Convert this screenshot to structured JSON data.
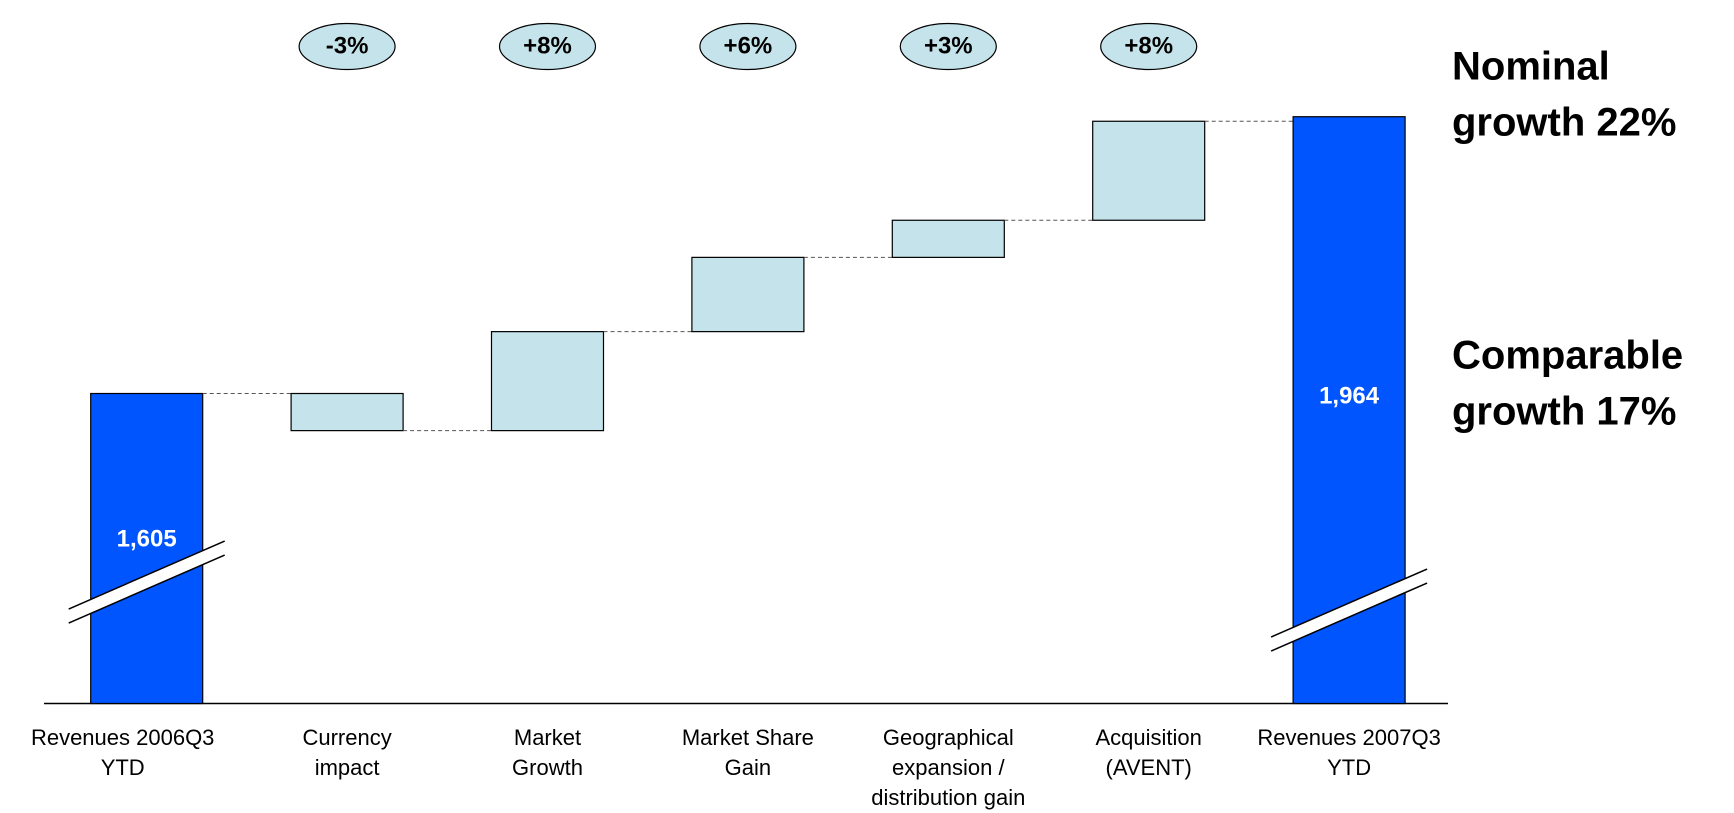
{
  "chart_data": {
    "type": "waterfall",
    "categories": [
      [
        "Revenues 2006Q3",
        "YTD"
      ],
      [
        "Currency",
        "impact"
      ],
      [
        "Market",
        "Growth"
      ],
      [
        "Market Share",
        "Gain"
      ],
      [
        "Geographical",
        "expansion /",
        "distribution gain"
      ],
      [
        "Acquisition",
        "(AVENT)"
      ],
      [
        "Revenues 2007Q3",
        "YTD"
      ]
    ],
    "measure": [
      "absolute",
      "relative",
      "relative",
      "relative",
      "relative",
      "relative",
      "total"
    ],
    "values": [
      1605,
      -3,
      8,
      6,
      3,
      8,
      1964
    ],
    "value_labels": [
      "1,605",
      "-3%",
      "+8%",
      "+6%",
      "+3%",
      "+8%",
      "1,964"
    ],
    "total_color": "#0055ff",
    "change_color": "#c5e3ea",
    "axis_break": true,
    "annotations": [
      [
        "Nominal",
        "growth 22%"
      ],
      [
        "Comparable",
        "growth 17%"
      ]
    ]
  }
}
